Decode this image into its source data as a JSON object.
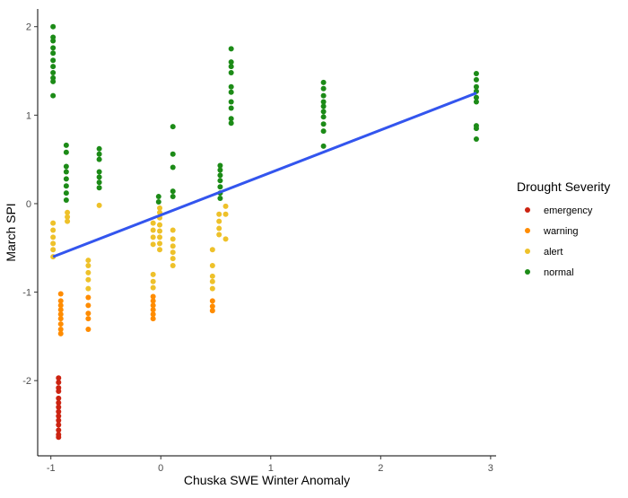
{
  "chart_data": {
    "type": "scatter",
    "title": "",
    "xlabel": "Chuska SWE Winter Anomaly",
    "ylabel": "March SPI",
    "xlim": [
      -1.12,
      3.05
    ],
    "ylim": [
      -2.85,
      2.2
    ],
    "xticks": [
      -1,
      0,
      1,
      2,
      3
    ],
    "xtick_labels": [
      "-1",
      "0",
      "1",
      "2",
      "3"
    ],
    "yticks": [
      -2,
      -1,
      0,
      1,
      2
    ],
    "ytick_labels": [
      "-2",
      "-1",
      "0",
      "1",
      "2"
    ],
    "grid": false,
    "legend": {
      "title": "Drought Severity",
      "placement": "right",
      "entries": [
        "emergency",
        "warning",
        "alert",
        "normal"
      ]
    },
    "colors": {
      "emergency": "#cc2311",
      "warning": "#ff8c00",
      "alert": "#eec12a",
      "normal": "#1c8b17",
      "trend": "#3355ee"
    },
    "trend_line": {
      "x": [
        -0.98,
        2.87
      ],
      "y": [
        -0.6,
        1.25
      ]
    },
    "series": [
      {
        "name": "emergency",
        "points": [
          [
            -0.93,
            -1.97
          ],
          [
            -0.93,
            -2.02
          ],
          [
            -0.93,
            -2.08
          ],
          [
            -0.93,
            -2.12
          ],
          [
            -0.93,
            -2.2
          ],
          [
            -0.93,
            -2.25
          ],
          [
            -0.93,
            -2.3
          ],
          [
            -0.93,
            -2.35
          ],
          [
            -0.93,
            -2.4
          ],
          [
            -0.93,
            -2.45
          ],
          [
            -0.93,
            -2.5
          ],
          [
            -0.93,
            -2.56
          ],
          [
            -0.93,
            -2.61
          ],
          [
            -0.93,
            -2.64
          ]
        ]
      },
      {
        "name": "warning",
        "points": [
          [
            -0.91,
            -1.02
          ],
          [
            -0.91,
            -1.1
          ],
          [
            -0.91,
            -1.15
          ],
          [
            -0.91,
            -1.2
          ],
          [
            -0.91,
            -1.25
          ],
          [
            -0.91,
            -1.3
          ],
          [
            -0.91,
            -1.36
          ],
          [
            -0.91,
            -1.42
          ],
          [
            -0.91,
            -1.47
          ],
          [
            -0.66,
            -1.06
          ],
          [
            -0.66,
            -1.15
          ],
          [
            -0.66,
            -1.24
          ],
          [
            -0.66,
            -1.3
          ],
          [
            -0.66,
            -1.42
          ],
          [
            -0.07,
            -1.05
          ],
          [
            -0.07,
            -1.1
          ],
          [
            -0.07,
            -1.15
          ],
          [
            -0.07,
            -1.2
          ],
          [
            -0.07,
            -1.25
          ],
          [
            -0.07,
            -1.3
          ],
          [
            0.47,
            -1.1
          ],
          [
            0.47,
            -1.16
          ],
          [
            0.47,
            -1.21
          ]
        ]
      },
      {
        "name": "alert",
        "points": [
          [
            -0.98,
            -0.22
          ],
          [
            -0.98,
            -0.3
          ],
          [
            -0.98,
            -0.38
          ],
          [
            -0.98,
            -0.45
          ],
          [
            -0.98,
            -0.52
          ],
          [
            -0.98,
            -0.6
          ],
          [
            -0.85,
            -0.1
          ],
          [
            -0.85,
            -0.15
          ],
          [
            -0.85,
            -0.2
          ],
          [
            -0.66,
            -0.64
          ],
          [
            -0.66,
            -0.7
          ],
          [
            -0.66,
            -0.78
          ],
          [
            -0.66,
            -0.86
          ],
          [
            -0.66,
            -0.96
          ],
          [
            -0.56,
            -0.02
          ],
          [
            -0.07,
            -0.22
          ],
          [
            -0.07,
            -0.3
          ],
          [
            -0.07,
            -0.38
          ],
          [
            -0.07,
            -0.46
          ],
          [
            -0.07,
            -0.8
          ],
          [
            -0.07,
            -0.88
          ],
          [
            -0.07,
            -0.95
          ],
          [
            -0.01,
            -0.05
          ],
          [
            -0.01,
            -0.1
          ],
          [
            -0.01,
            -0.16
          ],
          [
            -0.01,
            -0.24
          ],
          [
            -0.01,
            -0.31
          ],
          [
            -0.01,
            -0.38
          ],
          [
            -0.01,
            -0.45
          ],
          [
            -0.01,
            -0.52
          ],
          [
            0.11,
            -0.3
          ],
          [
            0.11,
            -0.4
          ],
          [
            0.11,
            -0.48
          ],
          [
            0.11,
            -0.55
          ],
          [
            0.11,
            -0.62
          ],
          [
            0.11,
            -0.7
          ],
          [
            0.47,
            -0.52
          ],
          [
            0.47,
            -0.7
          ],
          [
            0.47,
            -0.82
          ],
          [
            0.47,
            -0.88
          ],
          [
            0.47,
            -0.96
          ],
          [
            0.53,
            -0.12
          ],
          [
            0.53,
            -0.2
          ],
          [
            0.53,
            -0.28
          ],
          [
            0.53,
            -0.35
          ],
          [
            0.59,
            -0.03
          ],
          [
            0.59,
            -0.12
          ],
          [
            0.59,
            -0.4
          ]
        ]
      },
      {
        "name": "normal",
        "points": [
          [
            -0.98,
            2.0
          ],
          [
            -0.98,
            1.88
          ],
          [
            -0.98,
            1.84
          ],
          [
            -0.98,
            1.76
          ],
          [
            -0.98,
            1.7
          ],
          [
            -0.98,
            1.62
          ],
          [
            -0.98,
            1.55
          ],
          [
            -0.98,
            1.48
          ],
          [
            -0.98,
            1.42
          ],
          [
            -0.98,
            1.38
          ],
          [
            -0.98,
            1.22
          ],
          [
            -0.86,
            0.66
          ],
          [
            -0.86,
            0.58
          ],
          [
            -0.86,
            0.42
          ],
          [
            -0.86,
            0.36
          ],
          [
            -0.86,
            0.28
          ],
          [
            -0.86,
            0.2
          ],
          [
            -0.86,
            0.12
          ],
          [
            -0.86,
            0.04
          ],
          [
            -0.56,
            0.62
          ],
          [
            -0.56,
            0.56
          ],
          [
            -0.56,
            0.5
          ],
          [
            -0.56,
            0.36
          ],
          [
            -0.56,
            0.3
          ],
          [
            -0.56,
            0.24
          ],
          [
            -0.56,
            0.18
          ],
          [
            -0.02,
            0.08
          ],
          [
            -0.02,
            0.02
          ],
          [
            0.11,
            0.87
          ],
          [
            0.11,
            0.56
          ],
          [
            0.11,
            0.41
          ],
          [
            0.11,
            0.14
          ],
          [
            0.11,
            0.08
          ],
          [
            0.54,
            0.43
          ],
          [
            0.54,
            0.38
          ],
          [
            0.54,
            0.32
          ],
          [
            0.54,
            0.26
          ],
          [
            0.54,
            0.19
          ],
          [
            0.54,
            0.12
          ],
          [
            0.54,
            0.06
          ],
          [
            0.64,
            1.75
          ],
          [
            0.64,
            1.6
          ],
          [
            0.64,
            1.55
          ],
          [
            0.64,
            1.48
          ],
          [
            0.64,
            1.32
          ],
          [
            0.64,
            1.26
          ],
          [
            0.64,
            1.15
          ],
          [
            0.64,
            1.08
          ],
          [
            0.64,
            0.96
          ],
          [
            0.64,
            0.91
          ],
          [
            1.48,
            1.37
          ],
          [
            1.48,
            1.3
          ],
          [
            1.48,
            1.22
          ],
          [
            1.48,
            1.15
          ],
          [
            1.48,
            1.1
          ],
          [
            1.48,
            1.04
          ],
          [
            1.48,
            0.98
          ],
          [
            1.48,
            0.9
          ],
          [
            1.48,
            0.82
          ],
          [
            1.48,
            0.65
          ],
          [
            2.87,
            1.47
          ],
          [
            2.87,
            1.4
          ],
          [
            2.87,
            1.32
          ],
          [
            2.87,
            1.27
          ],
          [
            2.87,
            1.2
          ],
          [
            2.87,
            1.15
          ],
          [
            2.87,
            0.88
          ],
          [
            2.87,
            0.85
          ],
          [
            2.87,
            0.73
          ]
        ]
      }
    ]
  }
}
